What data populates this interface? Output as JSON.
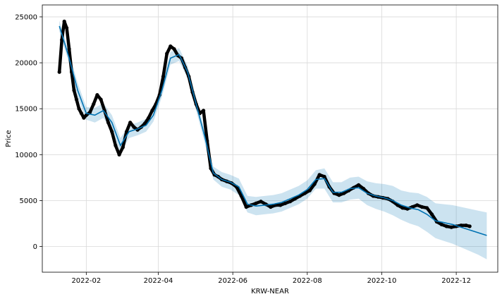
{
  "chart_data": {
    "type": "line",
    "xlabel": "KRW-NEAR",
    "ylabel": "Price",
    "x_ticks": [
      "2022-02",
      "2022-04",
      "2022-06",
      "2022-08",
      "2022-10",
      "2022-12"
    ],
    "y_ticks": [
      0,
      5000,
      10000,
      15000,
      20000,
      25000
    ],
    "xlim": [
      "2021-12-27",
      "2023-01-04"
    ],
    "ylim": [
      -2800,
      26300
    ],
    "grid": true,
    "colors": {
      "forecast": "#0072B2",
      "band": "#0072B2",
      "observed": "#000000"
    },
    "forecast": {
      "x": [
        "2022-01-10",
        "2022-01-18",
        "2022-01-25",
        "2022-02-01",
        "2022-02-08",
        "2022-02-15",
        "2022-02-22",
        "2022-03-01",
        "2022-03-08",
        "2022-03-15",
        "2022-03-22",
        "2022-03-28",
        "2022-04-04",
        "2022-04-11",
        "2022-04-18",
        "2022-04-25",
        "2022-05-02",
        "2022-05-09",
        "2022-05-16",
        "2022-05-23",
        "2022-05-30",
        "2022-06-06",
        "2022-06-13",
        "2022-06-20",
        "2022-06-27",
        "2022-07-04",
        "2022-07-11",
        "2022-07-18",
        "2022-07-25",
        "2022-08-01",
        "2022-08-08",
        "2022-08-15",
        "2022-08-22",
        "2022-08-29",
        "2022-09-05",
        "2022-09-12",
        "2022-09-19",
        "2022-09-26",
        "2022-10-03",
        "2022-10-10",
        "2022-10-17",
        "2022-10-24",
        "2022-10-31",
        "2022-11-07",
        "2022-11-14",
        "2022-11-21",
        "2022-11-28",
        "2022-12-05",
        "2022-12-12",
        "2022-12-19",
        "2022-12-26"
      ],
      "yhat": [
        24000,
        20500,
        17000,
        14500,
        14300,
        14800,
        13500,
        11000,
        12500,
        12800,
        13200,
        14300,
        17000,
        20500,
        20900,
        19000,
        15500,
        12000,
        8000,
        7300,
        7000,
        6500,
        4600,
        4400,
        4500,
        4600,
        4800,
        5200,
        5600,
        6200,
        7300,
        7400,
        5900,
        5900,
        6300,
        6400,
        5800,
        5500,
        5300,
        5000,
        4500,
        4200,
        4000,
        3500,
        2800,
        2600,
        2400,
        2100,
        1800,
        1500,
        1200
      ],
      "lower": [
        23400,
        19900,
        16200,
        13800,
        13500,
        14000,
        12700,
        10200,
        11800,
        12100,
        12500,
        13600,
        16300,
        19800,
        20200,
        18300,
        14800,
        11300,
        7300,
        6500,
        6200,
        5600,
        3700,
        3400,
        3500,
        3600,
        3800,
        4200,
        4600,
        5200,
        6300,
        6300,
        4800,
        4800,
        5100,
        5200,
        4500,
        4100,
        3800,
        3400,
        2900,
        2500,
        2200,
        1600,
        900,
        600,
        300,
        -100,
        -500,
        -900,
        -1400
      ],
      "upper": [
        24600,
        21100,
        17800,
        15200,
        15100,
        15600,
        14300,
        11800,
        13200,
        13500,
        13900,
        15000,
        17700,
        21200,
        21600,
        19700,
        16200,
        12700,
        8700,
        8100,
        7800,
        7400,
        5500,
        5400,
        5500,
        5600,
        5800,
        6200,
        6600,
        7200,
        8300,
        8500,
        7000,
        7000,
        7500,
        7600,
        7100,
        6900,
        6800,
        6600,
        6100,
        5900,
        5800,
        5400,
        4700,
        4600,
        4500,
        4300,
        4100,
        3900,
        3700
      ]
    },
    "observed": {
      "x": [
        "2022-01-10",
        "2022-01-12",
        "2022-01-14",
        "2022-01-16",
        "2022-01-18",
        "2022-01-20",
        "2022-01-22",
        "2022-01-24",
        "2022-01-26",
        "2022-01-28",
        "2022-01-30",
        "2022-02-01",
        "2022-02-04",
        "2022-02-07",
        "2022-02-10",
        "2022-02-13",
        "2022-02-16",
        "2022-02-19",
        "2022-02-22",
        "2022-02-25",
        "2022-02-28",
        "2022-03-03",
        "2022-03-06",
        "2022-03-09",
        "2022-03-12",
        "2022-03-15",
        "2022-03-18",
        "2022-03-21",
        "2022-03-24",
        "2022-03-27",
        "2022-03-30",
        "2022-04-02",
        "2022-04-05",
        "2022-04-08",
        "2022-04-11",
        "2022-04-14",
        "2022-04-17",
        "2022-04-20",
        "2022-04-23",
        "2022-04-26",
        "2022-04-29",
        "2022-05-02",
        "2022-05-05",
        "2022-05-08",
        "2022-05-11",
        "2022-05-14",
        "2022-05-17",
        "2022-05-20",
        "2022-05-23",
        "2022-05-27",
        "2022-05-31",
        "2022-06-04",
        "2022-06-08",
        "2022-06-12",
        "2022-06-16",
        "2022-06-20",
        "2022-06-24",
        "2022-06-28",
        "2022-07-02",
        "2022-07-06",
        "2022-07-10",
        "2022-07-14",
        "2022-07-18",
        "2022-07-22",
        "2022-07-26",
        "2022-07-30",
        "2022-08-03",
        "2022-08-07",
        "2022-08-11",
        "2022-08-15",
        "2022-08-19",
        "2022-08-23",
        "2022-08-27",
        "2022-08-31",
        "2022-09-04",
        "2022-09-08",
        "2022-09-12",
        "2022-09-16",
        "2022-09-20",
        "2022-09-24",
        "2022-09-28",
        "2022-10-02",
        "2022-10-06",
        "2022-10-10",
        "2022-10-14",
        "2022-10-18",
        "2022-10-22",
        "2022-10-26",
        "2022-10-30",
        "2022-11-03",
        "2022-11-07",
        "2022-11-11",
        "2022-11-15",
        "2022-11-19",
        "2022-11-23",
        "2022-11-27",
        "2022-12-01",
        "2022-12-05",
        "2022-12-09",
        "2022-12-12"
      ],
      "y": [
        19000,
        22500,
        24500,
        23800,
        21500,
        19000,
        17000,
        16000,
        15000,
        14500,
        14000,
        14300,
        14600,
        15500,
        16500,
        16000,
        14800,
        13500,
        12500,
        11000,
        10000,
        10800,
        12500,
        13500,
        13000,
        12700,
        13000,
        13400,
        14000,
        14800,
        15500,
        16500,
        18500,
        21000,
        21800,
        21500,
        20800,
        20500,
        19500,
        18500,
        16800,
        15500,
        14500,
        14800,
        11500,
        8500,
        7800,
        7600,
        7300,
        7100,
        6900,
        6500,
        5500,
        4300,
        4500,
        4700,
        4900,
        4600,
        4300,
        4500,
        4500,
        4700,
        4900,
        5200,
        5500,
        5800,
        6100,
        6800,
        7800,
        7600,
        6500,
        5800,
        5600,
        5800,
        6100,
        6400,
        6700,
        6300,
        5800,
        5500,
        5400,
        5300,
        5200,
        4900,
        4500,
        4200,
        4100,
        4300,
        4500,
        4300,
        4200,
        3500,
        2700,
        2400,
        2200,
        2100,
        2200,
        2300,
        2300,
        2200
      ]
    }
  }
}
